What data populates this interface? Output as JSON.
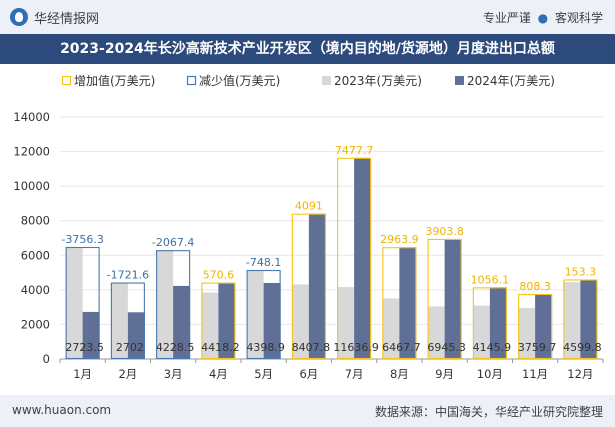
{
  "header": {
    "brand": "华经情报网",
    "tag1": "专业严谨",
    "tag_sep": "●",
    "tag2": "客观科学"
  },
  "title": "2023-2024年长沙高新技术产业开发区（境内目的地/货源地）月度进出口总额",
  "footer": {
    "site": "www.huaon.com",
    "source": "数据来源：中国海关，华经产业研究院整理"
  },
  "colors": {
    "bar2023": "#d8d8d8",
    "bar2024": "#5f6f95",
    "increase": "#f5c518",
    "decrease": "#4a78b0",
    "increase_label": "#f0b400",
    "decrease_label": "#3c6fa7",
    "grid": "#e6e6e6",
    "title_bg": "#2c4a7c"
  },
  "chart_data": {
    "type": "bar",
    "categories": [
      "1月",
      "2月",
      "3月",
      "4月",
      "5月",
      "6月",
      "7月",
      "8月",
      "9月",
      "10月",
      "11月",
      "12月"
    ],
    "ylim": [
      0,
      14000
    ],
    "yticks": [
      0,
      2000,
      4000,
      6000,
      8000,
      10000,
      12000,
      14000
    ],
    "grid": true,
    "legend_position": "top",
    "series": [
      {
        "name": "2023年(万美元)",
        "values": [
          6479.8,
          4423.6,
          6295.9,
          3847.6,
          5147.0,
          4316.7,
          4159.2,
          3503.8,
          3041.5,
          3089.8,
          2951.4,
          4446.5
        ]
      },
      {
        "name": "2024年(万美元)",
        "values": [
          2723.5,
          2702,
          4228.5,
          4418.2,
          4398.9,
          8407.8,
          11636.9,
          6467.7,
          6945.3,
          4145.9,
          3759.7,
          4599.8
        ]
      }
    ],
    "changes": [
      {
        "name": "增加值(万美元)",
        "values": [
          null,
          null,
          null,
          570.6,
          null,
          4091,
          7477.7,
          2963.9,
          3903.8,
          1056.1,
          808.3,
          153.3
        ]
      },
      {
        "name": "减少值(万美元)",
        "values": [
          -3756.3,
          -1721.6,
          -2067.4,
          null,
          -748.1,
          null,
          null,
          null,
          null,
          null,
          null,
          null
        ]
      }
    ],
    "change_labels": [
      "-3756.3",
      "-1721.6",
      "-2067.4",
      "570.6",
      "-748.1",
      "4091",
      "7477.7",
      "2963.9",
      "3903.8",
      "1056.1",
      "808.3",
      "153.3"
    ],
    "value_labels_2024": [
      "2723.5",
      "2702",
      "4228.5",
      "4418.2",
      "4398.9",
      "8407.8",
      "11636.9",
      "6467.7",
      "6945.3",
      "4145.9",
      "3759.7",
      "4599.8"
    ]
  }
}
